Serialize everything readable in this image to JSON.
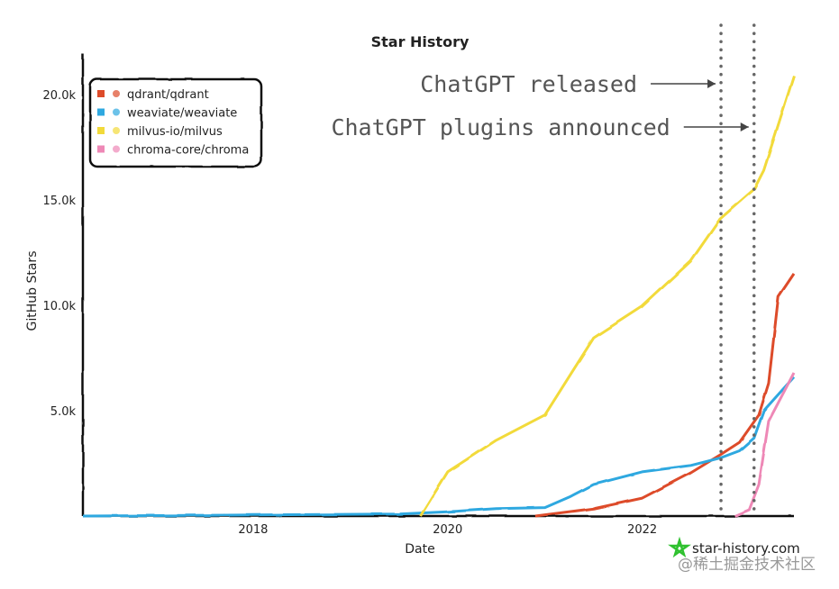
{
  "chart_data": {
    "type": "line",
    "title": "Star History",
    "xlabel": "Date",
    "ylabel": "GitHub Stars",
    "xlim": [
      2016.25,
      2023.56
    ],
    "ylim": [
      0,
      21000
    ],
    "x_ticks": [
      {
        "value": 2018,
        "label": "2018"
      },
      {
        "value": 2020,
        "label": "2020"
      },
      {
        "value": 2022,
        "label": "2022"
      }
    ],
    "y_ticks": [
      {
        "value": 5000,
        "label": "5.0k"
      },
      {
        "value": 10000,
        "label": "10.0k"
      },
      {
        "value": 15000,
        "label": "15.0k"
      },
      {
        "value": 20000,
        "label": "20.0k"
      }
    ],
    "grid": false,
    "legend_position": "top-left",
    "series": [
      {
        "name": "qdrant/qdrant",
        "color": "#dd4b2a",
        "icon": "qdrant-logo-icon",
        "x": [
          2020.9,
          2021.5,
          2022.0,
          2022.5,
          2022.8,
          2023.0,
          2023.2,
          2023.3,
          2023.4,
          2023.56
        ],
        "y": [
          0,
          350,
          850,
          2050,
          2900,
          3500,
          4800,
          6300,
          10400,
          11500
        ]
      },
      {
        "name": "weaviate/weaviate",
        "color": "#2ea8e0",
        "icon": "weaviate-logo-icon",
        "x": [
          2016.25,
          2018.0,
          2019.5,
          2020.0,
          2020.5,
          2021.0,
          2021.25,
          2021.5,
          2022.0,
          2022.5,
          2022.8,
          2023.0,
          2023.15,
          2023.25,
          2023.56
        ],
        "y": [
          0,
          50,
          100,
          200,
          350,
          400,
          900,
          1500,
          2100,
          2400,
          2750,
          3100,
          3700,
          5000,
          6600
        ]
      },
      {
        "name": "milvus-io/milvus",
        "color": "#f2da3a",
        "icon": "milvus-logo-icon",
        "x": [
          2019.72,
          2020.0,
          2020.5,
          2021.0,
          2021.5,
          2022.0,
          2022.5,
          2022.8,
          2023.0,
          2023.15,
          2023.25,
          2023.56
        ],
        "y": [
          0,
          2100,
          3600,
          4800,
          8450,
          9950,
          12100,
          14100,
          14900,
          15500,
          16400,
          20900
        ]
      },
      {
        "name": "chroma-core/chroma",
        "color": "#ee88b6",
        "icon": "chroma-logo-icon",
        "x": [
          2022.95,
          2023.1,
          2023.2,
          2023.3,
          2023.56
        ],
        "y": [
          0,
          300,
          1500,
          4500,
          6800
        ]
      }
    ],
    "annotations": [
      {
        "text": "ChatGPT released",
        "x": 2022.81
      },
      {
        "text": "ChatGPT plugins announced",
        "x": 2023.15
      }
    ]
  },
  "branding": {
    "site": "star-history.com",
    "watermark": "@稀土掘金技术社区"
  }
}
